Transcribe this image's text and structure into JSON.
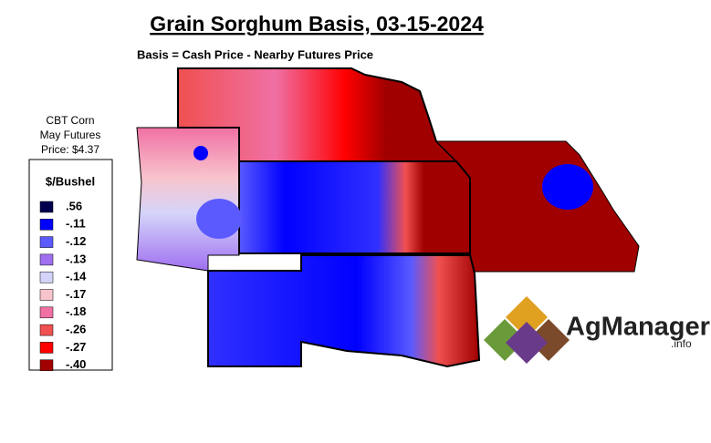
{
  "title": "Grain Sorghum Basis, 03-15-2024",
  "subtitle": "Basis = Cash Price - Nearby Futures Price",
  "futures": {
    "line1": "CBT Corn",
    "line2": "May Futures",
    "line3": "Price: $4.37"
  },
  "legend": {
    "title": "$/Bushel",
    "items": [
      {
        "label": ".56",
        "color": "#00004f"
      },
      {
        "label": "-.11",
        "color": "#0000ff"
      },
      {
        "label": "-.12",
        "color": "#5a5aff"
      },
      {
        "label": "-.13",
        "color": "#a070f0"
      },
      {
        "label": "-.14",
        "color": "#d4d4fa"
      },
      {
        "label": "-.17",
        "color": "#f8c4cc"
      },
      {
        "label": "-.18",
        "color": "#f070a4"
      },
      {
        "label": "-.26",
        "color": "#f05050"
      },
      {
        "label": "-.27",
        "color": "#ff0000"
      },
      {
        "label": "-.40",
        "color": "#a00000"
      }
    ]
  },
  "logo": {
    "name": "AgManager",
    "suffix": ".info"
  }
}
